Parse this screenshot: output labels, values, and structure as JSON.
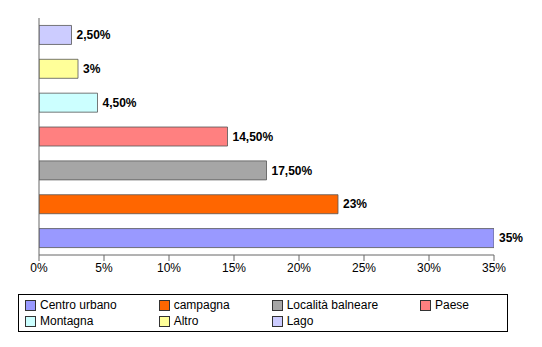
{
  "chart_data": {
    "type": "bar",
    "orientation": "horizontal",
    "categories": [
      "Centro urbano",
      "campagna",
      "Località balneare",
      "Paese",
      "Montagna",
      "Altro",
      "Lago"
    ],
    "values": [
      35,
      23,
      17.5,
      14.5,
      4.5,
      3,
      2.5
    ],
    "value_labels": [
      "35%",
      "23%",
      "17,50%",
      "14,50%",
      "4,50%",
      "3%",
      "2,50%"
    ],
    "colors": [
      "#9999ff",
      "#ff6600",
      "#a6a6a6",
      "#ff8080",
      "#ccffff",
      "#ffff99",
      "#ccccff"
    ],
    "xlim": [
      0,
      35
    ],
    "xticks": [
      {
        "value": 0,
        "label": "0%"
      },
      {
        "value": 5,
        "label": "5%"
      },
      {
        "value": 10,
        "label": "10%"
      },
      {
        "value": 15,
        "label": "15%"
      },
      {
        "value": 20,
        "label": "20%"
      },
      {
        "value": 25,
        "label": "25%"
      },
      {
        "value": 30,
        "label": "30%"
      },
      {
        "value": 35,
        "label": "35%"
      }
    ],
    "data_labels": true,
    "tick_labels": "x",
    "grid": false,
    "legend": "bottom"
  }
}
